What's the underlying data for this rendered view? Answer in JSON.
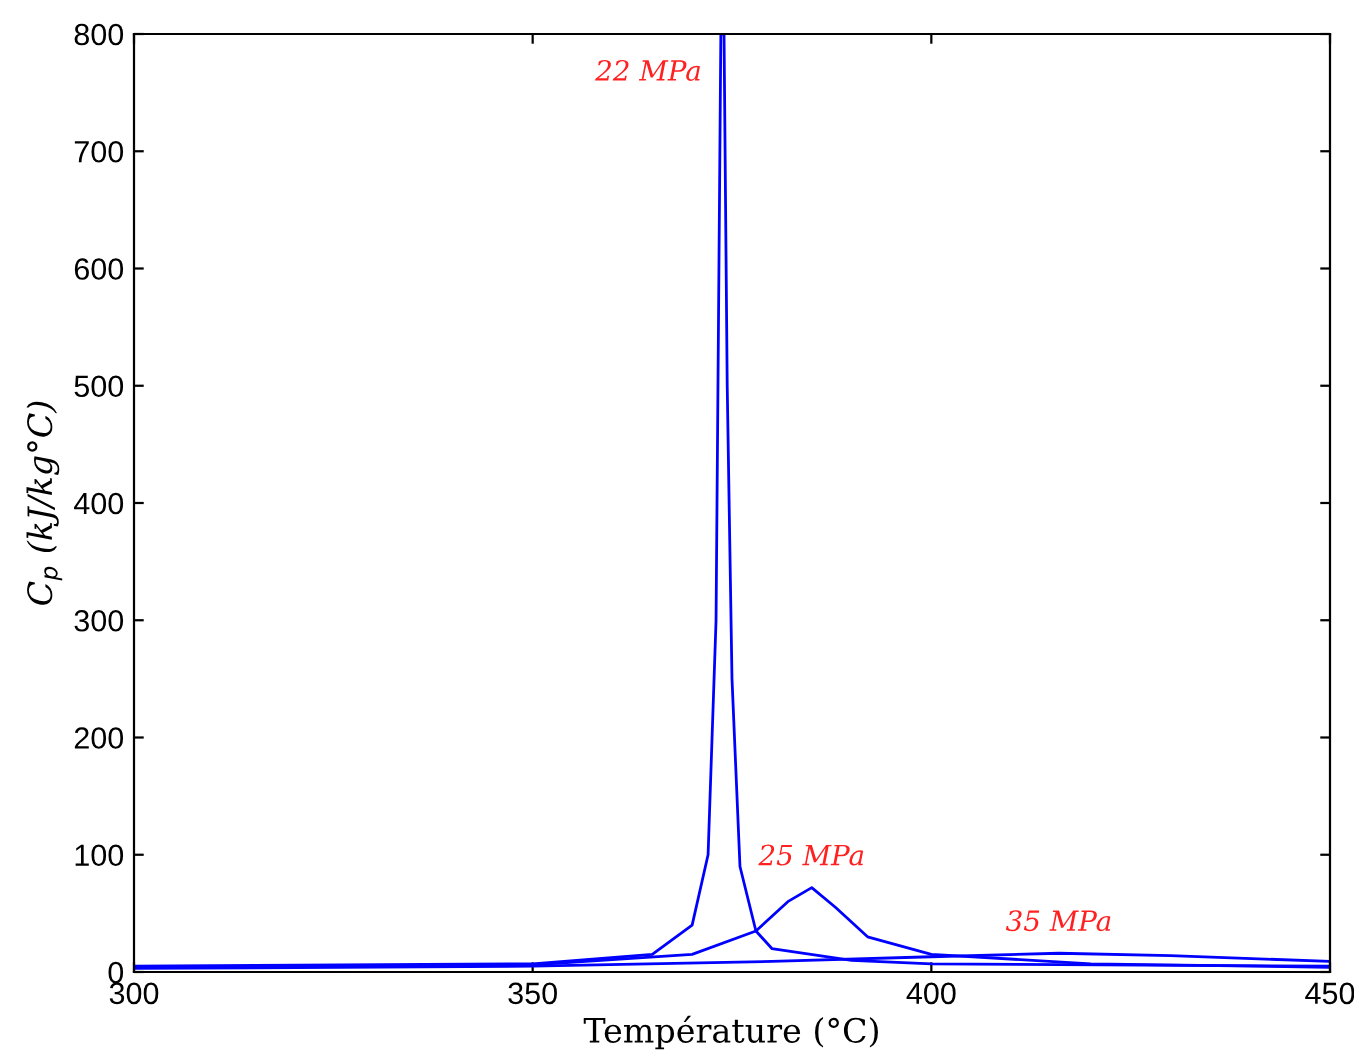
{
  "chart_data": {
    "type": "line",
    "xlabel": "Température (°C)",
    "ylabel": "C$_{p}$ (kJ/kg°C)",
    "xlim": [
      300,
      450
    ],
    "ylim": [
      0,
      800
    ],
    "xticks": [
      300,
      350,
      400,
      450
    ],
    "yticks": [
      0,
      100,
      200,
      300,
      400,
      500,
      600,
      700,
      800
    ],
    "grid": false,
    "legend": false,
    "series": [
      {
        "color": "#0000ff",
        "x": [
          300,
          350,
          365,
          370,
          372,
          373,
          373.6,
          374,
          374.4,
          375,
          376,
          378,
          380,
          390,
          400,
          450
        ],
        "values": [
          5,
          7,
          15,
          40,
          100,
          300,
          800,
          800,
          500,
          250,
          90,
          35,
          20,
          10,
          7,
          5
        ]
      },
      {
        "color": "#0000ff",
        "x": [
          300,
          350,
          370,
          378,
          382,
          385,
          388,
          392,
          400,
          420,
          450
        ],
        "values": [
          4,
          6,
          15,
          35,
          60,
          72,
          55,
          30,
          15,
          7,
          4
        ]
      },
      {
        "color": "#0000ff",
        "x": [
          300,
          350,
          380,
          400,
          416,
          430,
          450
        ],
        "values": [
          3,
          5,
          9,
          13,
          16,
          14,
          9
        ]
      }
    ],
    "annotations": [
      {
        "text": "22 MPa",
        "x": 374,
        "y": 800
      },
      {
        "text": "25 MPa",
        "x": 385,
        "y": 72
      },
      {
        "text": "35 MPa",
        "x": 416,
        "y": 16
      }
    ]
  }
}
